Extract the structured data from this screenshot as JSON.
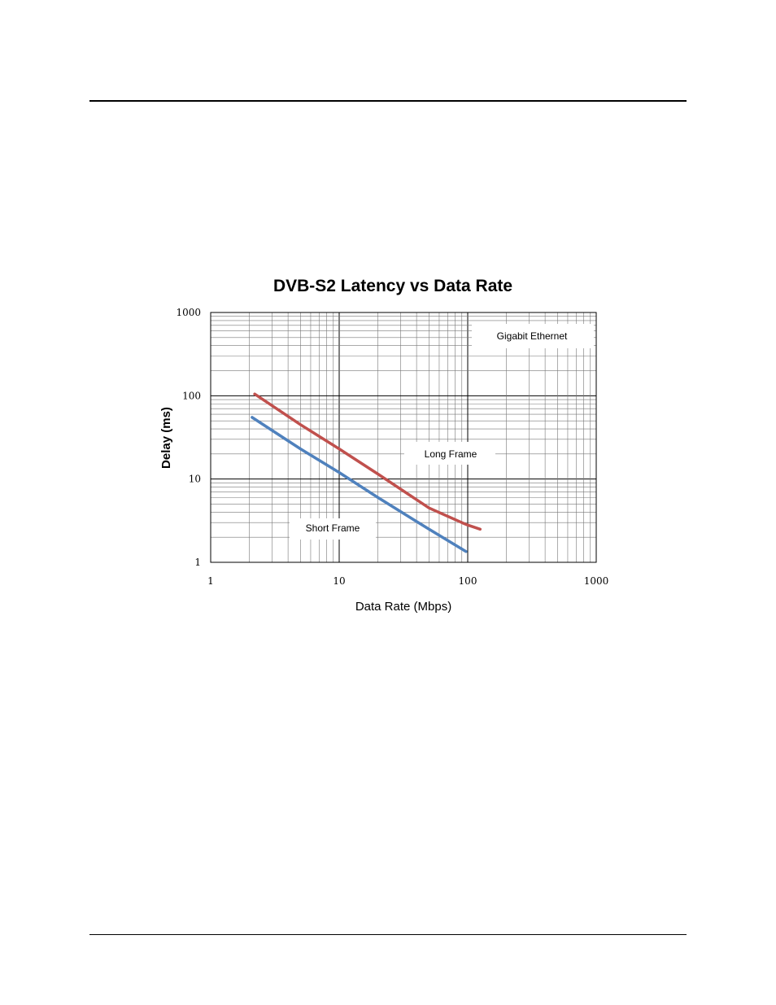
{
  "colors": {
    "long_frame": "#c0504d",
    "short_frame": "#4f81bd",
    "grid_major": "#000000",
    "grid_minor": "#000000"
  },
  "chart_data": {
    "type": "line",
    "title": "DVB-S2 Latency vs Data Rate",
    "xlabel": "Data Rate (Mbps)",
    "ylabel": "Delay (ms)",
    "x_scale": "log",
    "y_scale": "log",
    "xlim": [
      1,
      1000
    ],
    "ylim": [
      1,
      1000
    ],
    "x_ticks": [
      "1",
      "10",
      "100",
      "1000"
    ],
    "y_ticks": [
      "1000",
      "100",
      "10",
      "1"
    ],
    "grid": true,
    "series": [
      {
        "name": "Long Frame",
        "x": [
          2.2,
          5,
          10,
          20,
          50,
          90,
          100,
          125
        ],
        "y": [
          105,
          45,
          23,
          11.5,
          4.5,
          3.0,
          2.8,
          2.5
        ]
      },
      {
        "name": "Short Frame",
        "x": [
          2.1,
          5,
          10,
          20,
          50,
          97
        ],
        "y": [
          55,
          23,
          12,
          6.0,
          2.5,
          1.35
        ]
      }
    ],
    "annotations": [
      "Gigabit Ethernet",
      "Long Frame",
      "Short Frame"
    ]
  }
}
